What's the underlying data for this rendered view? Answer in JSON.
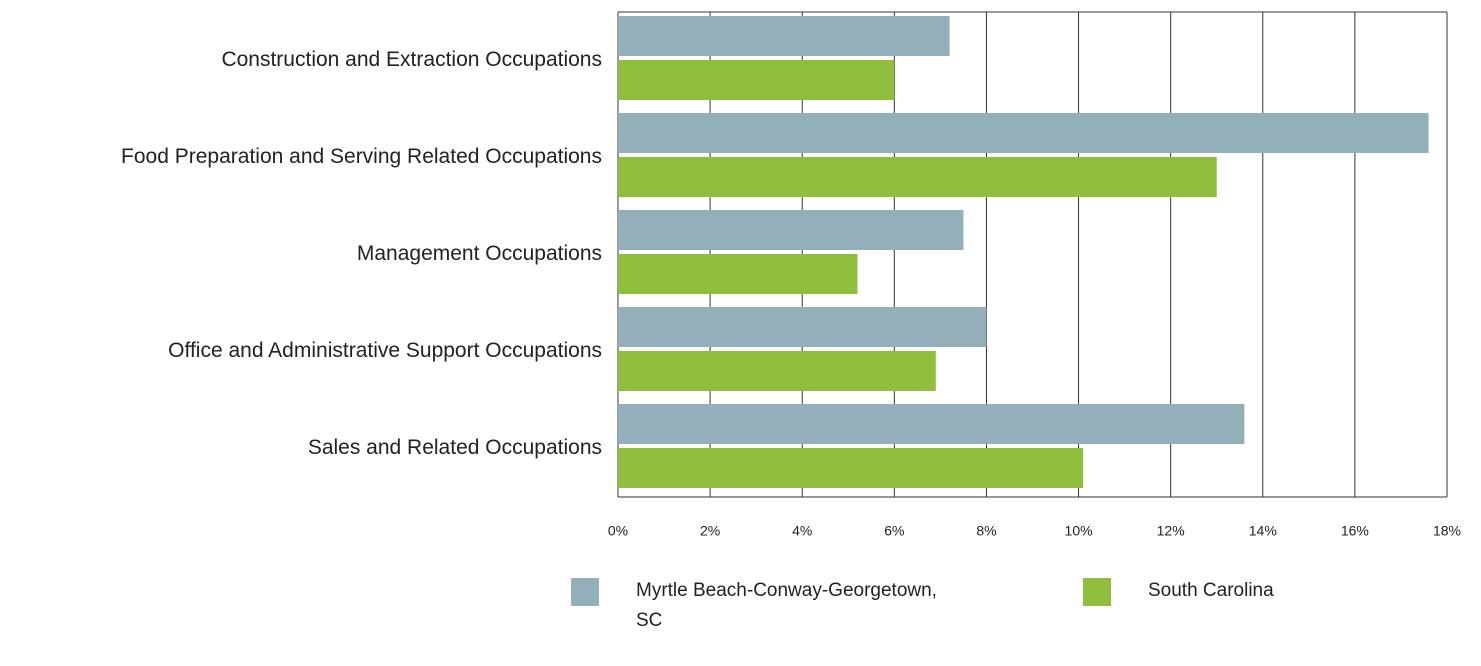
{
  "chart_data": {
    "type": "bar",
    "orientation": "horizontal",
    "categories": [
      "Construction and Extraction Occupations",
      "Food Preparation and Serving Related Occupations",
      "Management Occupations",
      "Office and Administrative Support Occupations",
      "Sales and Related Occupations"
    ],
    "series": [
      {
        "name": "Myrtle Beach-Conway-Georgetown, SC",
        "color": "#93b0ba",
        "values": [
          7.2,
          17.6,
          7.5,
          8.0,
          13.6
        ]
      },
      {
        "name": "South Carolina",
        "color": "#8fbd3c",
        "values": [
          6.0,
          13.0,
          5.2,
          6.9,
          10.1
        ]
      }
    ],
    "xlim": [
      0,
      18
    ],
    "xticks": [
      {
        "value": 0,
        "label": "0%"
      },
      {
        "value": 2,
        "label": "2%"
      },
      {
        "value": 4,
        "label": "4%"
      },
      {
        "value": 6,
        "label": "6%"
      },
      {
        "value": 8,
        "label": "8%"
      },
      {
        "value": 10,
        "label": "10%"
      },
      {
        "value": 12,
        "label": "12%"
      },
      {
        "value": 14,
        "label": "14%"
      },
      {
        "value": 16,
        "label": "16%"
      },
      {
        "value": 18,
        "label": "18%"
      }
    ],
    "grid": true,
    "legend": "bottom"
  }
}
